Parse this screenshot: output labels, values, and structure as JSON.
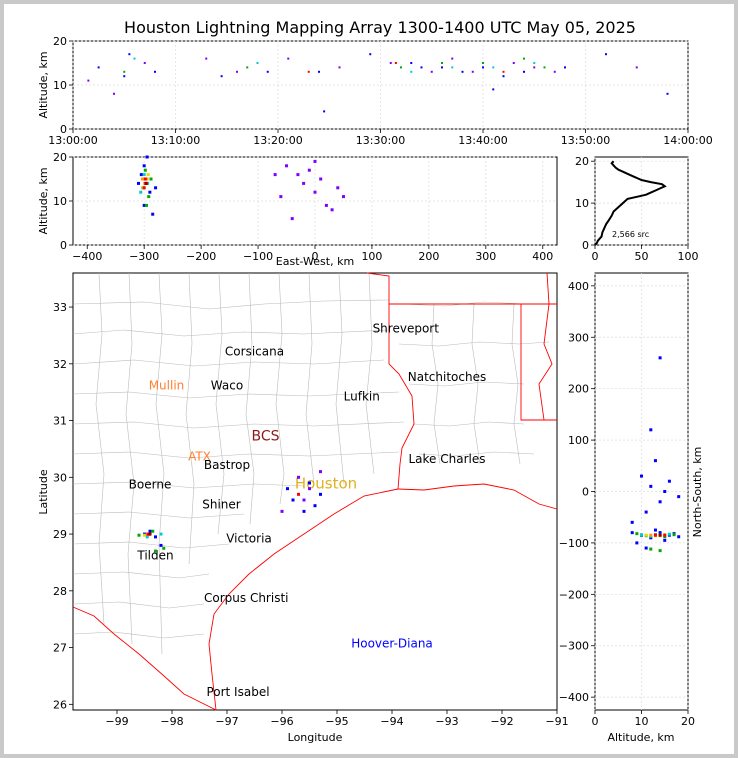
{
  "title": "Houston Lightning Mapping Array 1300-1400 UTC May 05, 2025",
  "colors": {
    "background": "#ffffff",
    "page_border": "#c9c9c9",
    "state_border": "#ff0000",
    "county_border": "#bbbbbb",
    "city_label": "#000000",
    "mullin_label": "#ff7f32",
    "atx_label": "#ff7f32",
    "houston_label": "#e0b020",
    "bcs_label": "#8b1a1a",
    "hoover_label": "#0000ff",
    "density_scale": [
      "#0000ff",
      "#7f00ff",
      "#00aa00",
      "#00cccc",
      "#dddd00",
      "#ff9900",
      "#ff0000",
      "#8b0000"
    ]
  },
  "chart_data": [
    {
      "id": "time_height",
      "type": "scatter",
      "ylabel": "Altitude, km",
      "xticks": [
        "13:00:00",
        "13:10:00",
        "13:20:00",
        "13:30:00",
        "13:40:00",
        "13:50:00",
        "14:00:00"
      ],
      "yticks": [
        "0",
        "10",
        "20"
      ],
      "xlim": [
        "13:00:00",
        "14:00:00"
      ],
      "ylim": [
        0,
        20
      ],
      "grid": true,
      "series": [
        {
          "color": "#0000ff",
          "points": [
            [
              "13:02:30",
              14
            ],
            [
              "13:05:00",
              12
            ],
            [
              "13:05:30",
              17
            ],
            [
              "13:08:00",
              13
            ],
            [
              "13:14:30",
              12
            ],
            [
              "13:19:00",
              13
            ],
            [
              "13:24:00",
              13
            ],
            [
              "13:24:30",
              4
            ],
            [
              "13:29:00",
              17
            ],
            [
              "13:33:00",
              15
            ],
            [
              "13:34:00",
              14
            ],
            [
              "13:36:00",
              14
            ],
            [
              "13:38:00",
              13
            ],
            [
              "13:40:00",
              14
            ],
            [
              "13:41:00",
              9
            ],
            [
              "13:42:00",
              12
            ],
            [
              "13:44:00",
              13
            ],
            [
              "13:48:00",
              14
            ],
            [
              "13:52:00",
              17
            ],
            [
              "13:58:00",
              8
            ]
          ]
        },
        {
          "color": "#7f00ff",
          "points": [
            [
              "13:01:30",
              11
            ],
            [
              "13:04:00",
              8
            ],
            [
              "13:07:00",
              15
            ],
            [
              "13:13:00",
              16
            ],
            [
              "13:16:00",
              13
            ],
            [
              "13:21:00",
              16
            ],
            [
              "13:26:00",
              14
            ],
            [
              "13:31:00",
              15
            ],
            [
              "13:35:00",
              13
            ],
            [
              "13:37:00",
              16
            ],
            [
              "13:39:00",
              13
            ],
            [
              "13:43:00",
              15
            ],
            [
              "13:45:00",
              14
            ],
            [
              "13:47:00",
              13
            ],
            [
              "13:55:00",
              14
            ]
          ]
        },
        {
          "color": "#00aa00",
          "points": [
            [
              "13:05:00",
              13
            ],
            [
              "13:17:00",
              14
            ],
            [
              "13:32:00",
              14
            ],
            [
              "13:36:00",
              15
            ],
            [
              "13:40:00",
              15
            ],
            [
              "13:44:00",
              16
            ],
            [
              "13:46:00",
              14
            ]
          ]
        },
        {
          "color": "#00cccc",
          "points": [
            [
              "13:06:00",
              16
            ],
            [
              "13:18:00",
              15
            ],
            [
              "13:33:00",
              13
            ],
            [
              "13:37:00",
              14
            ],
            [
              "13:41:00",
              14
            ],
            [
              "13:45:00",
              15
            ]
          ]
        },
        {
          "color": "#ff0000",
          "points": [
            [
              "13:23:00",
              13
            ],
            [
              "13:31:30",
              15
            ],
            [
              "13:42:00",
              13
            ]
          ]
        }
      ]
    },
    {
      "id": "ew_height",
      "type": "scatter",
      "xlabel": "East-West, km",
      "ylabel": "Altitude, km",
      "xticks": [
        "−400",
        "−300",
        "−200",
        "−100",
        "0",
        "100",
        "200",
        "300",
        "400"
      ],
      "yticks": [
        "0",
        "10",
        "20"
      ],
      "xlim": [
        -425,
        425
      ],
      "ylim": [
        0,
        20
      ],
      "grid": true,
      "series": [
        {
          "color": "#0000ff",
          "points": [
            [
              -300,
              18
            ],
            [
              -305,
              16
            ],
            [
              -290,
              12
            ],
            [
              -300,
              9
            ],
            [
              -285,
              7
            ],
            [
              -295,
              20
            ],
            [
              -310,
              14
            ],
            [
              -280,
              13
            ]
          ]
        },
        {
          "color": "#00aa00",
          "points": [
            [
              -298,
              17
            ],
            [
              -302,
              13
            ],
            [
              -292,
              11
            ],
            [
              -296,
              9
            ],
            [
              -288,
              15
            ]
          ]
        },
        {
          "color": "#00cccc",
          "points": [
            [
              -300,
              16
            ],
            [
              -294,
              14
            ],
            [
              -306,
              12
            ]
          ]
        },
        {
          "color": "#dddd00",
          "points": [
            [
              -297,
              15
            ],
            [
              -301,
              13
            ],
            [
              -293,
              16
            ]
          ]
        },
        {
          "color": "#ff9900",
          "points": [
            [
              -299,
              14
            ],
            [
              -295,
              15
            ],
            [
              -303,
              15
            ]
          ]
        },
        {
          "color": "#ff0000",
          "points": [
            [
              -298,
              15
            ],
            [
              -296,
              14
            ],
            [
              -300,
              13
            ]
          ]
        },
        {
          "color": "#8b0000",
          "points": [
            [
              -297,
              14
            ]
          ]
        },
        {
          "color": "#7f00ff",
          "points": [
            [
              -50,
              18
            ],
            [
              -30,
              16
            ],
            [
              -20,
              14
            ],
            [
              0,
              12
            ],
            [
              10,
              15
            ],
            [
              -60,
              11
            ],
            [
              20,
              9
            ],
            [
              30,
              8
            ],
            [
              -40,
              6
            ],
            [
              40,
              13
            ],
            [
              0,
              19
            ],
            [
              -10,
              17
            ],
            [
              50,
              11
            ],
            [
              -70,
              16
            ]
          ]
        }
      ]
    },
    {
      "id": "alt_histogram",
      "type": "line",
      "annotation": "2,566 src",
      "xticks": [
        "0",
        "50",
        "100"
      ],
      "yticks": [
        "0",
        "10",
        "20"
      ],
      "xlim": [
        0,
        100
      ],
      "ylim": [
        0,
        21
      ],
      "grid": true,
      "x": [
        0,
        2,
        3,
        5,
        7,
        8,
        10,
        12,
        15,
        18,
        20,
        25,
        30,
        35,
        45,
        55,
        60,
        65,
        70,
        75,
        72,
        60,
        50,
        45,
        40,
        35,
        30,
        25,
        22,
        20,
        18,
        20
      ],
      "y": [
        0,
        0.5,
        1,
        1.5,
        2,
        3,
        4,
        5,
        6,
        7,
        8,
        9,
        10,
        11,
        11.5,
        12,
        12.5,
        13,
        13.5,
        14,
        14.5,
        15,
        15.5,
        16,
        16.5,
        17,
        17.5,
        18,
        18.5,
        19,
        19.5,
        20
      ]
    },
    {
      "id": "plan_view",
      "type": "scatter",
      "xlabel": "Longitude",
      "ylabel": "Latitude",
      "xticks": [
        "−99",
        "−98",
        "−97",
        "−96",
        "−95",
        "−94",
        "−93",
        "−92",
        "−91"
      ],
      "yticks": [
        "26",
        "27",
        "28",
        "29",
        "30",
        "31",
        "32",
        "33"
      ],
      "xlim": [
        -99.8,
        -91
      ],
      "ylim": [
        25.9,
        33.6
      ],
      "grid": false,
      "series": [
        {
          "color": "#0000ff",
          "points": [
            [
              -98.5,
              29.0
            ],
            [
              -98.3,
              28.95
            ],
            [
              -98.4,
              29.05
            ],
            [
              -98.2,
              28.8
            ],
            [
              -95.8,
              29.6
            ],
            [
              -95.6,
              29.4
            ],
            [
              -95.3,
              29.7
            ],
            [
              -95.9,
              29.8
            ],
            [
              -95.5,
              29.9
            ],
            [
              -95.4,
              29.5
            ]
          ]
        },
        {
          "color": "#7f00ff",
          "points": [
            [
              -95.7,
              30.0
            ],
            [
              -95.5,
              29.8
            ],
            [
              -96.0,
              29.4
            ],
            [
              -95.3,
              30.1
            ],
            [
              -95.6,
              29.6
            ]
          ]
        },
        {
          "color": "#00aa00",
          "points": [
            [
              -98.6,
              28.98
            ],
            [
              -98.35,
              29.05
            ],
            [
              -98.15,
              28.75
            ],
            [
              -98.3,
              28.7
            ]
          ]
        },
        {
          "color": "#00cccc",
          "points": [
            [
              -98.45,
              28.95
            ],
            [
              -98.2,
              29.0
            ]
          ]
        },
        {
          "color": "#dddd00",
          "points": [
            [
              -98.4,
              29.0
            ],
            [
              -98.5,
              28.98
            ]
          ]
        },
        {
          "color": "#ff9900",
          "points": [
            [
              -98.42,
              28.99
            ]
          ]
        },
        {
          "color": "#ff0000",
          "points": [
            [
              -98.44,
              29.0
            ],
            [
              -95.7,
              29.7
            ]
          ]
        },
        {
          "color": "#8b0000",
          "points": [
            [
              -98.4,
              29.0
            ]
          ]
        }
      ]
    },
    {
      "id": "ns_height",
      "type": "scatter",
      "xlabel": "Altitude, km",
      "ylabel": "North-South, km",
      "xticks": [
        "0",
        "10",
        "20"
      ],
      "yticks": [
        "−400",
        "−300",
        "−200",
        "−100",
        "0",
        "100",
        "200",
        "300",
        "400"
      ],
      "xlim": [
        0,
        20
      ],
      "ylim": [
        -425,
        425
      ],
      "grid": true,
      "series": [
        {
          "color": "#0000ff",
          "points": [
            [
              8,
              -80
            ],
            [
              10,
              -85
            ],
            [
              12,
              -90
            ],
            [
              14,
              -80
            ],
            [
              16,
              -85
            ],
            [
              18,
              -88
            ],
            [
              9,
              -100
            ],
            [
              11,
              -110
            ],
            [
              13,
              -75
            ],
            [
              15,
              -95
            ],
            [
              17,
              -82
            ],
            [
              10,
              30
            ],
            [
              12,
              10
            ],
            [
              14,
              -20
            ],
            [
              16,
              20
            ],
            [
              13,
              60
            ],
            [
              11,
              -40
            ],
            [
              15,
              0
            ],
            [
              8,
              -60
            ],
            [
              18,
              -10
            ],
            [
              12,
              120
            ],
            [
              14,
              260
            ]
          ]
        },
        {
          "color": "#00aa00",
          "points": [
            [
              9,
              -82
            ],
            [
              11,
              -86
            ],
            [
              13,
              -84
            ],
            [
              15,
              -88
            ],
            [
              17,
              -84
            ],
            [
              12,
              -112
            ],
            [
              14,
              -115
            ]
          ]
        },
        {
          "color": "#00cccc",
          "points": [
            [
              10,
              -84
            ],
            [
              12,
              -87
            ],
            [
              14,
              -85
            ],
            [
              16,
              -83
            ]
          ]
        },
        {
          "color": "#dddd00",
          "points": [
            [
              11,
              -85
            ],
            [
              13,
              -86
            ],
            [
              15,
              -84
            ]
          ]
        },
        {
          "color": "#ff9900",
          "points": [
            [
              12,
              -85
            ],
            [
              14,
              -86
            ]
          ]
        },
        {
          "color": "#ff0000",
          "points": [
            [
              13,
              -85
            ],
            [
              15,
              -85
            ]
          ]
        },
        {
          "color": "#8b0000",
          "points": [
            [
              14,
              -85
            ]
          ]
        }
      ]
    }
  ],
  "map": {
    "cities": [
      {
        "name": "Shreveport",
        "lon": -93.75,
        "lat": 32.55,
        "style": "city"
      },
      {
        "name": "Corsicana",
        "lon": -96.5,
        "lat": 32.15,
        "style": "city"
      },
      {
        "name": "Natchitoches",
        "lon": -93.0,
        "lat": 31.7,
        "style": "city"
      },
      {
        "name": "Mullin",
        "lon": -98.1,
        "lat": 31.55,
        "style": "mullin"
      },
      {
        "name": "Waco",
        "lon": -97.0,
        "lat": 31.55,
        "style": "city"
      },
      {
        "name": "Lufkin",
        "lon": -94.55,
        "lat": 31.35,
        "style": "city"
      },
      {
        "name": "BCS",
        "lon": -96.3,
        "lat": 30.65,
        "style": "bcs"
      },
      {
        "name": "ATX",
        "lon": -97.5,
        "lat": 30.3,
        "style": "atx"
      },
      {
        "name": "Bastrop",
        "lon": -97.0,
        "lat": 30.15,
        "style": "city"
      },
      {
        "name": "Lake Charles",
        "lon": -93.0,
        "lat": 30.25,
        "style": "city"
      },
      {
        "name": "Boerne",
        "lon": -98.4,
        "lat": 29.8,
        "style": "city"
      },
      {
        "name": "Houston",
        "lon": -95.2,
        "lat": 29.8,
        "style": "houston"
      },
      {
        "name": "Shiner",
        "lon": -97.1,
        "lat": 29.45,
        "style": "city"
      },
      {
        "name": "Victoria",
        "lon": -96.6,
        "lat": 28.85,
        "style": "city"
      },
      {
        "name": "Tilden",
        "lon": -98.3,
        "lat": 28.55,
        "style": "city"
      },
      {
        "name": "Corpus Christi",
        "lon": -96.65,
        "lat": 27.8,
        "style": "city"
      },
      {
        "name": "Hoover-Diana",
        "lon": -94.0,
        "lat": 27.0,
        "style": "hoover"
      },
      {
        "name": "Port Isabel",
        "lon": -96.8,
        "lat": 26.15,
        "style": "city"
      }
    ]
  }
}
